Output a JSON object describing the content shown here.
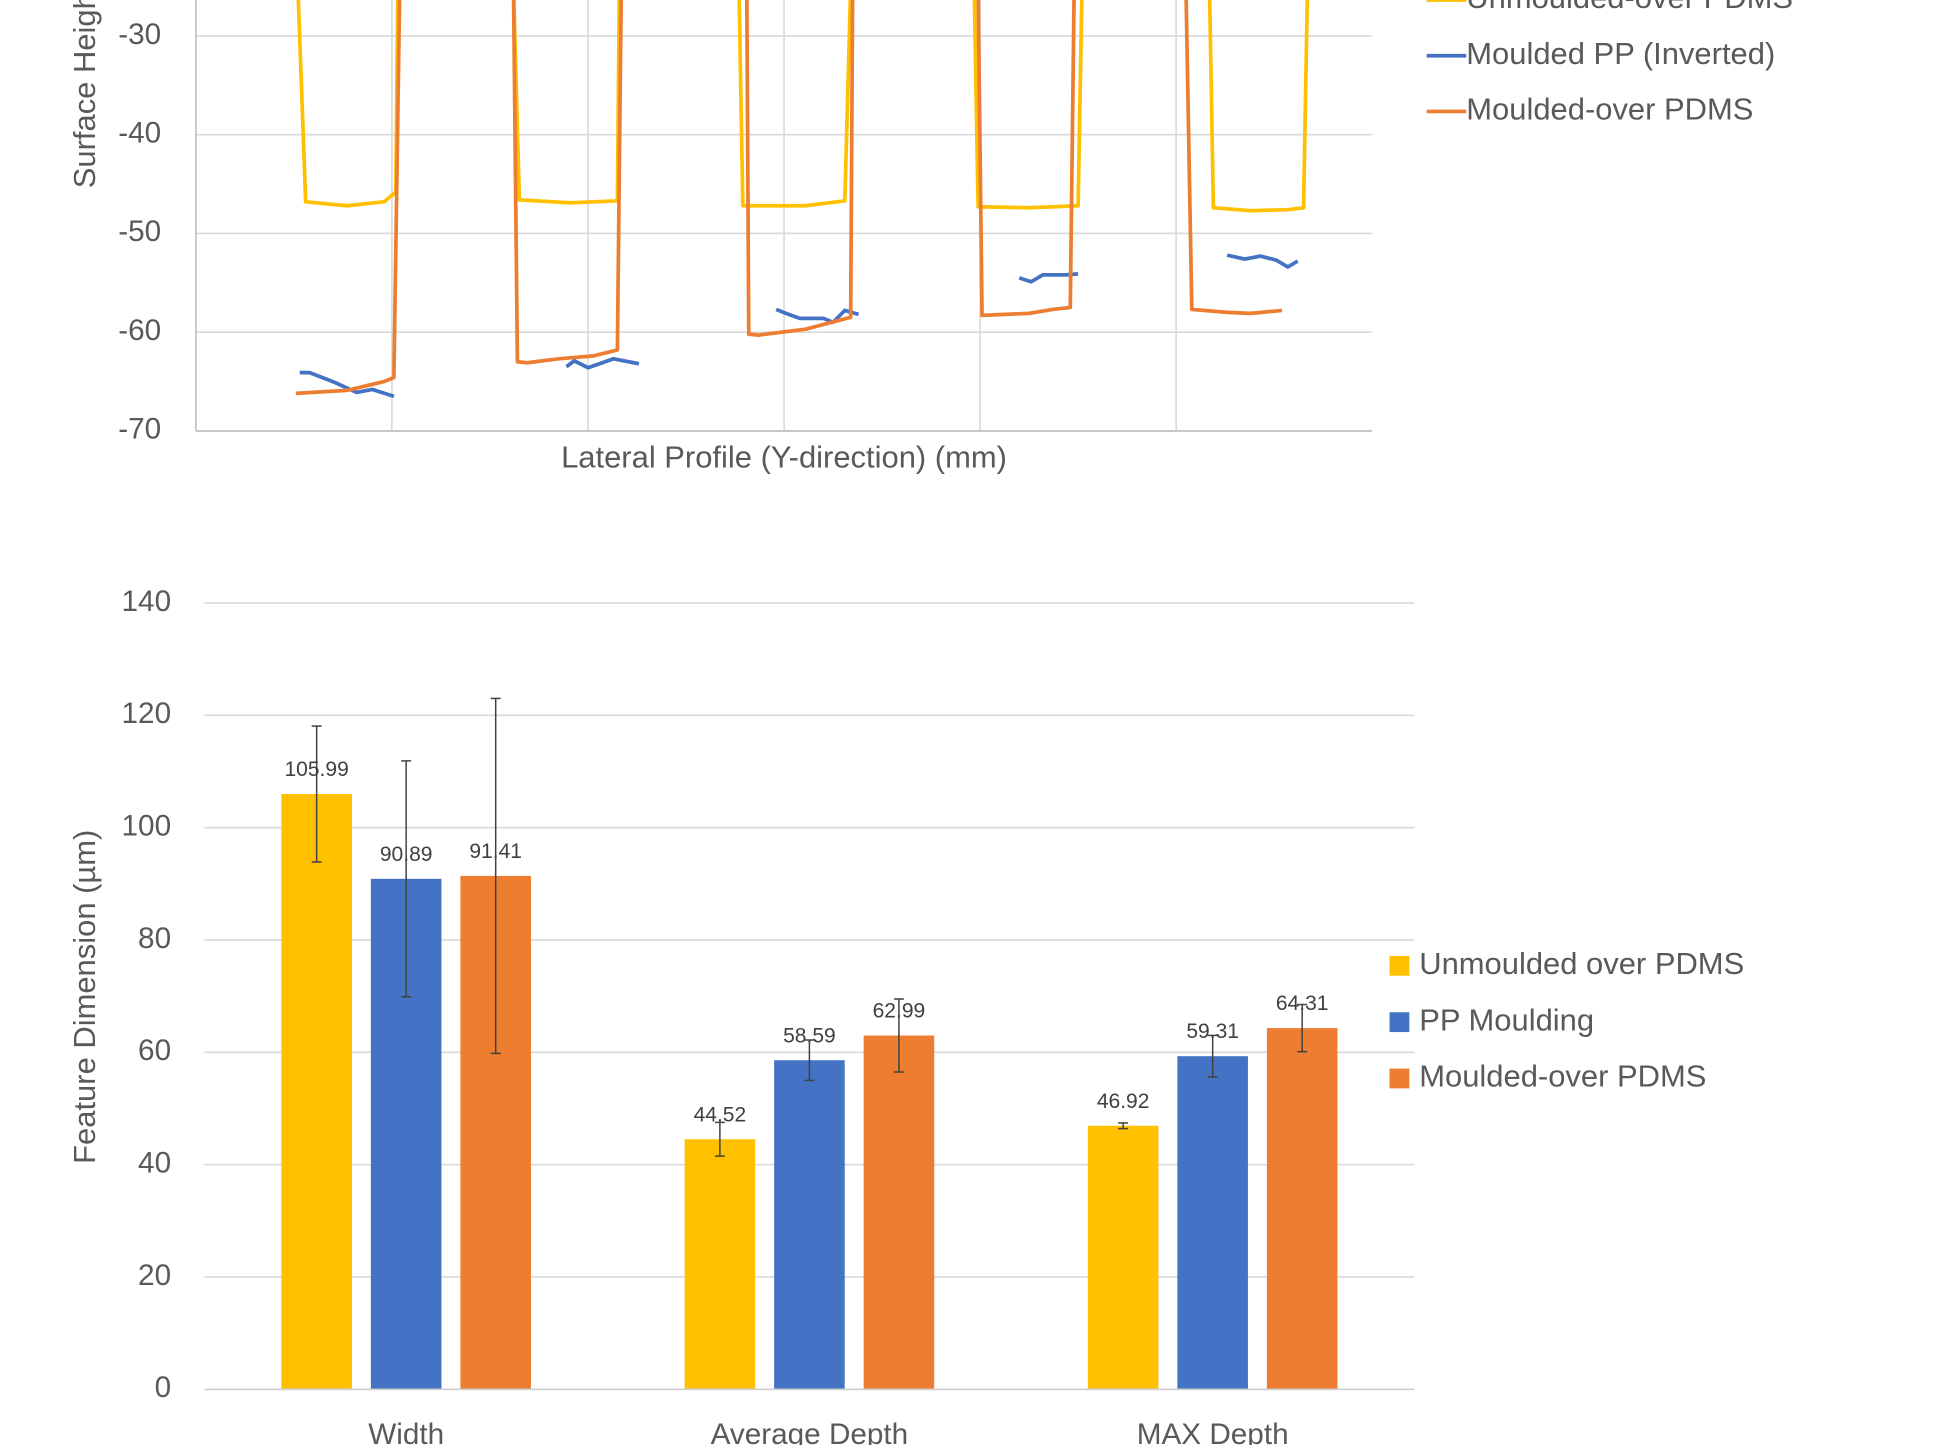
{
  "chart_data": [
    {
      "type": "line",
      "xlabel": "Lateral Profile (Y-direction) (mm)",
      "ylabel": "Surface Height (µm)",
      "xlim": [
        0,
        6
      ],
      "xticks": [
        1,
        2,
        3,
        4,
        5
      ],
      "xtick_labels": false,
      "ylim": [
        -70,
        -30
      ],
      "yticks": [
        -70,
        -60,
        -50,
        -40,
        -30
      ],
      "grid": true,
      "legend": "right",
      "series": [
        {
          "name": "Unmoulded-over PDMS",
          "color": "#FFC000",
          "x": [
            0.52,
            0.56,
            0.77,
            0.96,
            1.02,
            1.03,
            1.62,
            1.65,
            1.91,
            2.15,
            2.16,
            2.77,
            2.79,
            3.11,
            3.31,
            3.34,
            3.97,
            3.99,
            4.25,
            4.5,
            4.52,
            5.17,
            5.19,
            5.38,
            5.57,
            5.65,
            5.67
          ],
          "values": [
            -25,
            -46.8,
            -47.2,
            -46.8,
            -45.8,
            -25,
            -25,
            -46.6,
            -46.9,
            -46.7,
            -25,
            -25,
            -47.2,
            -47.2,
            -46.7,
            -25,
            -25,
            -47.3,
            -47.4,
            -47.2,
            -25,
            -25,
            -47.4,
            -47.7,
            -47.6,
            -47.4,
            -25
          ]
        },
        {
          "name": "Moulded PP (Inverted)",
          "color": "#4472C4",
          "x": [
            0.53,
            0.58,
            0.71,
            0.82,
            0.9,
            1.01,
            null,
            1.89,
            1.93,
            2.0,
            2.13,
            2.26,
            null,
            2.96,
            3.01,
            3.08,
            3.2,
            3.25,
            3.31,
            3.38,
            null,
            4.2,
            4.26,
            4.32,
            4.44,
            4.5,
            null,
            5.26,
            5.35,
            5.43,
            5.51,
            5.57,
            5.62
          ],
          "values": [
            -64.1,
            -64.1,
            -65.1,
            -66.1,
            -65.8,
            -66.5,
            null,
            -63.5,
            -62.9,
            -63.6,
            -62.7,
            -63.2,
            null,
            -57.7,
            -58.1,
            -58.6,
            -58.6,
            -59.0,
            -57.8,
            -58.2,
            null,
            -54.5,
            -54.9,
            -54.2,
            -54.2,
            -54.1,
            null,
            -52.2,
            -52.6,
            -52.3,
            -52.7,
            -53.4,
            -52.8
          ]
        },
        {
          "name": "Moulded-over PDMS",
          "color": "#ED7D31",
          "x": [
            0.51,
            0.77,
            0.96,
            1.01,
            1.04,
            1.62,
            1.64,
            1.69,
            1.85,
            2.03,
            2.15,
            2.17,
            2.81,
            2.82,
            2.87,
            3.11,
            3.3,
            3.34,
            3.35,
            3.99,
            4.01,
            4.25,
            4.37,
            4.46,
            4.48,
            5.05,
            5.08,
            5.26,
            5.38,
            5.54
          ],
          "values": [
            -66.2,
            -65.9,
            -65.0,
            -64.6,
            -25,
            -25,
            -63.0,
            -63.1,
            -62.7,
            -62.4,
            -61.8,
            -25,
            -25,
            -60.2,
            -60.3,
            -59.7,
            -58.7,
            -58.5,
            -25,
            -25,
            -58.3,
            -58.1,
            -57.7,
            -57.5,
            -25,
            -25,
            -57.7,
            -58.0,
            -58.1,
            -57.8
          ]
        }
      ]
    },
    {
      "type": "bar",
      "ylabel": "Feature Dimension (µm)",
      "categories": [
        "Width",
        "Average Depth",
        "MAX Depth"
      ],
      "ylim": [
        0,
        140
      ],
      "yticks": [
        0,
        20,
        40,
        60,
        80,
        100,
        120,
        140
      ],
      "grid": true,
      "legend": "right",
      "series": [
        {
          "name": "Unmoulded over PDMS",
          "color": "#FFC000",
          "values": [
            105.99,
            44.52,
            46.92
          ],
          "errors": [
            12.1,
            3.0,
            0.5
          ]
        },
        {
          "name": "PP Moulding",
          "color": "#4472C4",
          "values": [
            90.89,
            58.59,
            59.31
          ],
          "errors": [
            21.0,
            3.6,
            3.7
          ]
        },
        {
          "name": "Moulded-over PDMS",
          "color": "#ED7D31",
          "values": [
            91.41,
            62.99,
            64.31
          ],
          "errors": [
            31.6,
            6.5,
            4.2
          ]
        }
      ]
    }
  ]
}
